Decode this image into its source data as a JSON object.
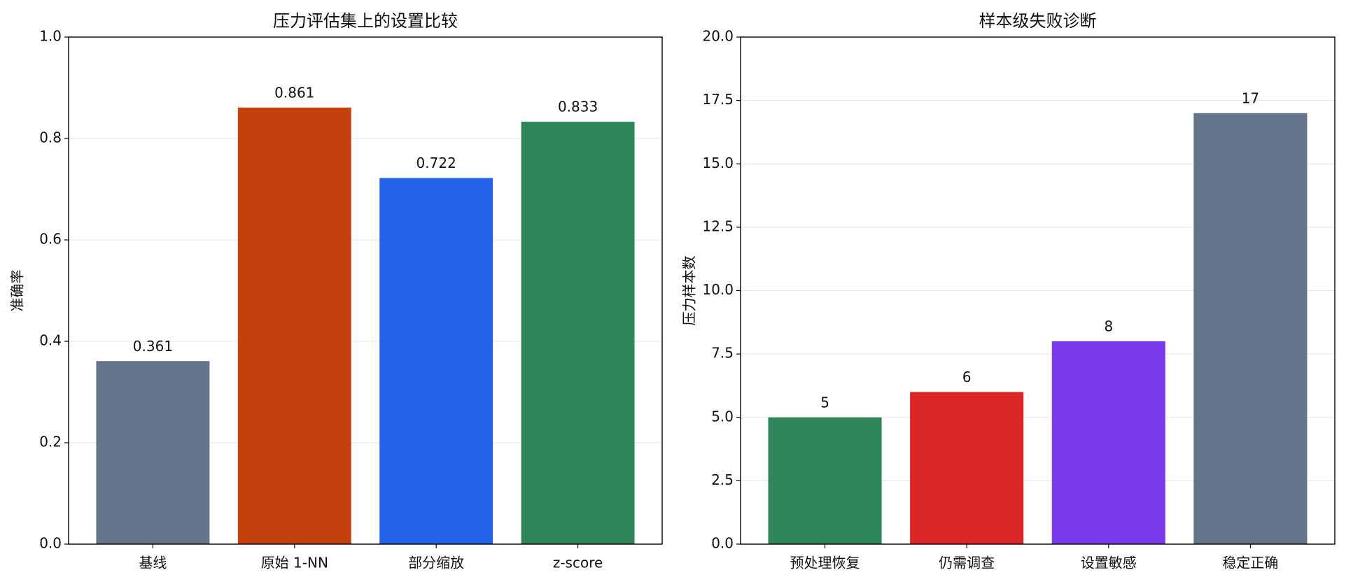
{
  "chart_data": [
    {
      "type": "bar",
      "title": "压力评估集上的设置比较",
      "ylabel": "准确率",
      "categories": [
        "基线",
        "原始 1-NN",
        "部分缩放",
        "z-score"
      ],
      "values": [
        0.361,
        0.861,
        0.722,
        0.833
      ],
      "colors": [
        "#64748b",
        "#c2410c",
        "#2563eb",
        "#2e8659"
      ],
      "ylim": [
        0,
        1
      ],
      "yticks": [
        {
          "value": 0,
          "label": "0.0"
        },
        0.2,
        0.4,
        0.6,
        0.8,
        {
          "value": 1,
          "label": "1.0"
        }
      ],
      "grid": true
    },
    {
      "type": "bar",
      "title": "样本级失败诊断",
      "ylabel": "压力样本数",
      "categories": [
        "预处理恢复",
        "仍需调查",
        "设置敏感",
        "稳定正确"
      ],
      "values": [
        5,
        6,
        8,
        17
      ],
      "colors": [
        "#2e8659",
        "#dc2626",
        "#7c3aed",
        "#64748b"
      ],
      "ylim": [
        0,
        20
      ],
      "yticks": [
        {
          "value": 0,
          "label": "0.0"
        },
        2.5,
        {
          "value": 5,
          "label": "5.0"
        },
        7.5,
        {
          "value": 10,
          "label": "10.0"
        },
        12.5,
        {
          "value": 15,
          "label": "15.0"
        },
        17.5,
        {
          "value": 20,
          "label": "20.0"
        }
      ],
      "grid": true
    }
  ]
}
